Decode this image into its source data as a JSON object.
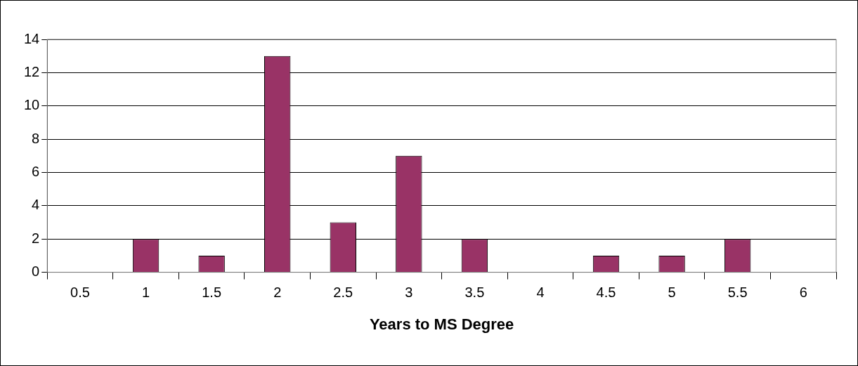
{
  "chart_data": {
    "type": "bar",
    "xlabel": "Years to MS Degree",
    "categories": [
      "0.5",
      "1",
      "1.5",
      "2",
      "2.5",
      "3",
      "3.5",
      "4",
      "4.5",
      "5",
      "5.5",
      "6"
    ],
    "values": [
      0,
      2,
      1,
      13,
      3,
      7,
      2,
      0,
      1,
      1,
      2,
      0
    ],
    "color": "#993366",
    "ylim": [
      0,
      14
    ],
    "yticks": [
      0,
      2,
      4,
      6,
      8,
      10,
      12,
      14
    ],
    "grid": "y",
    "legend": false
  }
}
